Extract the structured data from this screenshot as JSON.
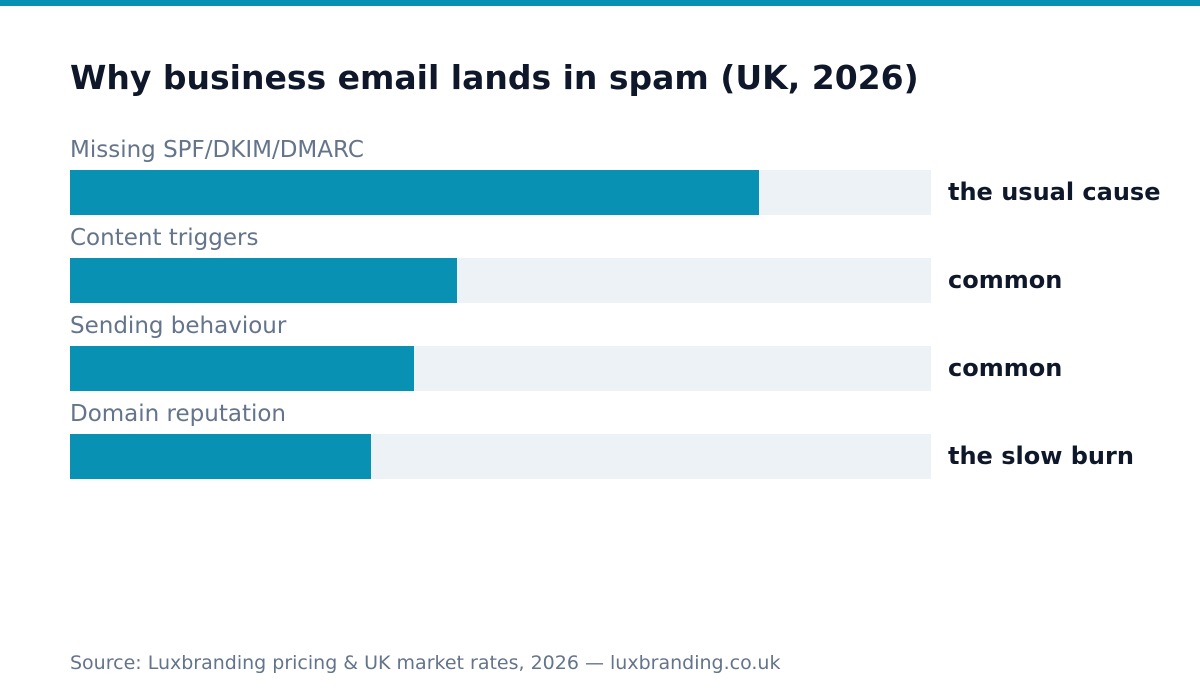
{
  "colors": {
    "accent": "#0891b2",
    "track": "#edf2f7",
    "title": "#0f172a",
    "muted": "#64748b"
  },
  "chart_data": {
    "type": "bar",
    "orientation": "horizontal",
    "title": "Why business email lands in spam (UK, 2026)",
    "categories": [
      "Missing SPF/DKIM/DMARC",
      "Content triggers",
      "Sending behaviour",
      "Domain reputation"
    ],
    "values": [
      0.8,
      0.45,
      0.4,
      0.35
    ],
    "value_labels": [
      "the usual cause",
      "common",
      "common",
      "the slow burn"
    ],
    "xlim": [
      0,
      1
    ],
    "grid": false,
    "legend": "none",
    "axes": "hidden"
  },
  "source": "Source: Luxbranding pricing & UK market rates, 2026 — luxbranding.co.uk"
}
